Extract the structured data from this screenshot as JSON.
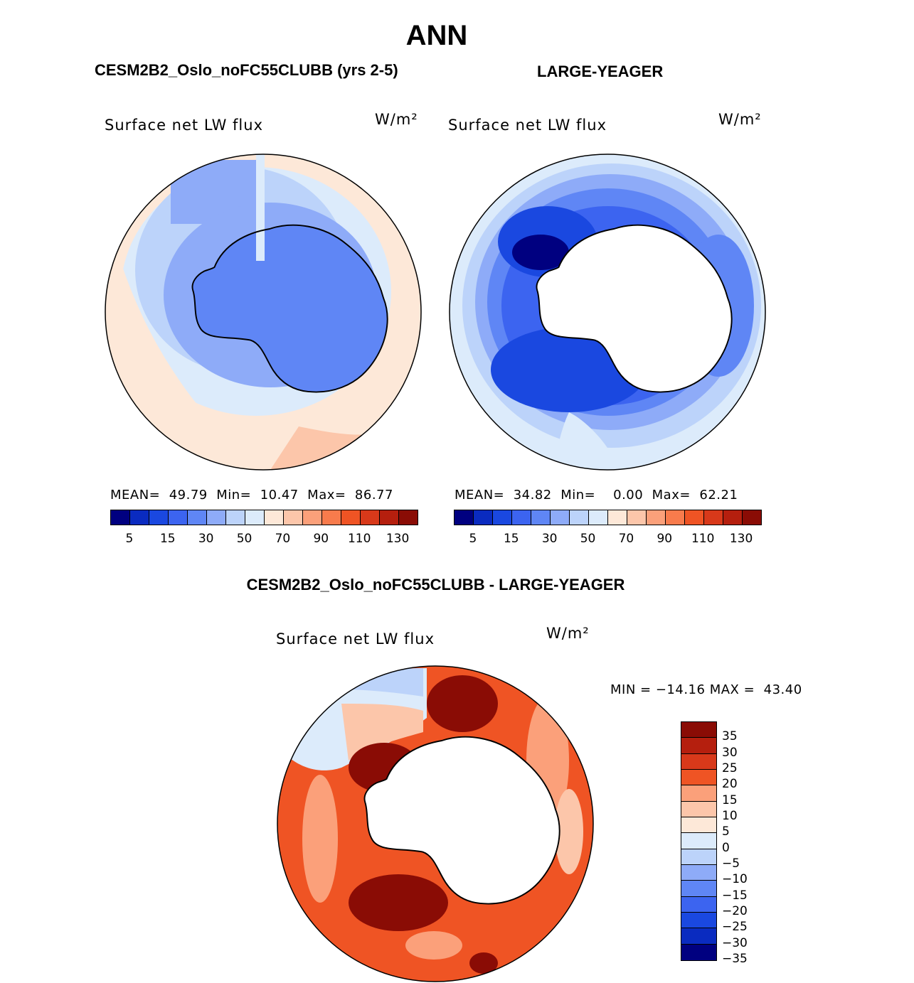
{
  "title": "ANN",
  "panels": [
    {
      "id": "test",
      "case_title": "CESM2B2_Oslo_noFC55CLUBB (yrs 2-5)",
      "variable_label": "Surface net LW flux",
      "units": "W/m²",
      "stats": {
        "mean_label": "MEAN=",
        "mean": "49.79",
        "min_label": "Min=",
        "min": "10.47",
        "max_label": "Max=",
        "max": "86.77"
      }
    },
    {
      "id": "obs",
      "case_title": "LARGE-YEAGER",
      "variable_label": "Surface net LW flux",
      "units": "W/m²",
      "stats": {
        "mean_label": "MEAN=",
        "mean": "34.82",
        "min_label": "Min=",
        "min": "0.00",
        "max_label": "Max=",
        "max": "62.21"
      }
    },
    {
      "id": "diff",
      "case_title": "CESM2B2_Oslo_noFC55CLUBB - LARGE-YEAGER",
      "variable_label": "Surface net LW flux",
      "units": "W/m²",
      "stats": {
        "min_label": "MIN =",
        "min": "−14.16",
        "max_label": "MAX =",
        "max": "43.40"
      }
    }
  ],
  "abs_colorbar": {
    "colors": [
      "#000080",
      "#0a2bc0",
      "#1a48e0",
      "#3c64f0",
      "#5f86f5",
      "#8eabf8",
      "#bcd3fa",
      "#dcebfb",
      "#fde8d8",
      "#fcc6aa",
      "#fba07a",
      "#f87b4c",
      "#ef5424",
      "#d8391a",
      "#b51f0e",
      "#8a0c05"
    ],
    "labels": [
      "5",
      "15",
      "30",
      "50",
      "70",
      "90",
      "110",
      "130"
    ]
  },
  "diff_colorbar": {
    "colors": [
      "#8a0c05",
      "#b51f0e",
      "#d8391a",
      "#ef5424",
      "#fba07a",
      "#fcc6aa",
      "#fde8d8",
      "#dcebfb",
      "#bcd3fa",
      "#8eabf8",
      "#5f86f5",
      "#3c64f0",
      "#1a48e0",
      "#0a2bc0",
      "#000080"
    ],
    "labels": [
      "35",
      "30",
      "25",
      "20",
      "15",
      "10",
      "5",
      "0",
      "−5",
      "−10",
      "−15",
      "−20",
      "−25",
      "−30",
      "−35"
    ]
  },
  "map_colors": {
    "land_outline": "#000000",
    "missing": "#ffffff"
  }
}
